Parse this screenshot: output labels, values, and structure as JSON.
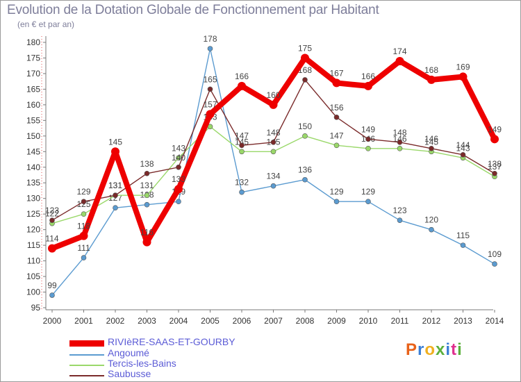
{
  "title": "Evolution de la Dotation Globale de Fonctionnement par Habitant",
  "subtitle": "(en € et par an)",
  "logo": {
    "text": "Proxiti",
    "colors": [
      "#e8621a",
      "#3a7fd5",
      "#f0b020",
      "#5bb03c",
      "#3a7fd5",
      "#e0308f",
      "#5bb03c"
    ]
  },
  "chart_data": {
    "type": "line",
    "x": [
      2000,
      2001,
      2002,
      2003,
      2004,
      2005,
      2006,
      2007,
      2008,
      2009,
      2010,
      2011,
      2012,
      2013,
      2014
    ],
    "ylim": [
      95,
      180
    ],
    "yticks": [
      95,
      100,
      105,
      110,
      115,
      120,
      125,
      130,
      135,
      140,
      145,
      150,
      155,
      160,
      165,
      170,
      175,
      180
    ],
    "grid": false,
    "legend_position": "bottom-left",
    "series": [
      {
        "name": "Angoumé",
        "color": "#5b9bd0",
        "values": [
          99,
          111,
          127,
          128,
          129,
          178,
          132,
          134,
          136,
          129,
          129,
          123,
          120,
          115,
          109
        ]
      },
      {
        "name": "Tercis-les-Bains",
        "color": "#9ad86a",
        "values": [
          122,
          125,
          131,
          131,
          143,
          153,
          145,
          145,
          150,
          147,
          146,
          146,
          145,
          143,
          137
        ]
      },
      {
        "name": "Saubusse",
        "color": "#7a2a2a",
        "values": [
          123,
          129,
          131,
          138,
          140,
          165,
          147,
          148,
          168,
          156,
          149,
          148,
          146,
          144,
          138
        ]
      },
      {
        "name": "RIVIèRE-SAAS-ET-GOURBY",
        "color": "#ee0000",
        "values": [
          114,
          118,
          145,
          116,
          133,
          157,
          166,
          160,
          175,
          167,
          166,
          174,
          168,
          169,
          149
        ]
      }
    ],
    "legend": [
      "RIVIèRE-SAAS-ET-GOURBY",
      "Angoumé",
      "Tercis-les-Bains",
      "Saubusse"
    ]
  }
}
